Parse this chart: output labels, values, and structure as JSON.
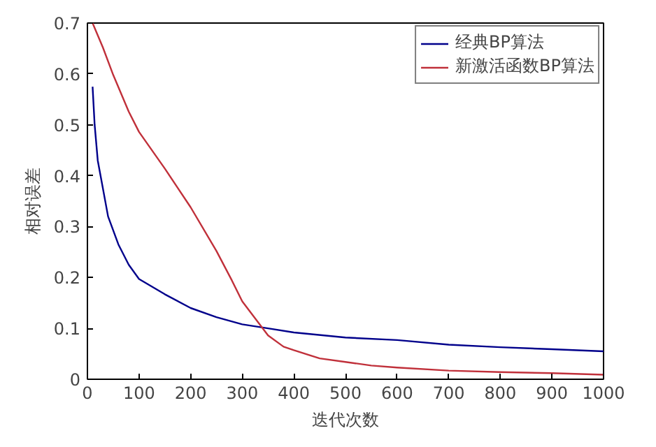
{
  "chart_data": {
    "type": "line",
    "xlabel": "迭代次数",
    "ylabel": "相对误差",
    "xlim": [
      0,
      1000
    ],
    "ylim": [
      0,
      0.7
    ],
    "xticks": [
      0,
      100,
      200,
      300,
      400,
      500,
      600,
      700,
      800,
      900,
      1000
    ],
    "yticks": [
      0,
      0.1,
      0.2,
      0.3,
      0.4,
      0.5,
      0.6,
      0.7
    ],
    "grid": false,
    "legend": "top right",
    "line_style": "solid",
    "series": [
      {
        "name": "经典BP算法",
        "color": "#00008b",
        "x": [
          10,
          14,
          20,
          40,
          60,
          80,
          100,
          150,
          200,
          250,
          300,
          350,
          400,
          500,
          600,
          700,
          800,
          900,
          1000
        ],
        "values": [
          0.575,
          0.5,
          0.43,
          0.32,
          0.265,
          0.225,
          0.197,
          0.167,
          0.14,
          0.122,
          0.108,
          0.1,
          0.092,
          0.082,
          0.077,
          0.068,
          0.063,
          0.059,
          0.055
        ]
      },
      {
        "name": "新激活函数BP算法",
        "color": "#c0303a",
        "x": [
          10,
          30,
          50,
          80,
          100,
          150,
          200,
          250,
          280,
          300,
          330,
          350,
          380,
          400,
          450,
          500,
          550,
          600,
          700,
          800,
          900,
          1000
        ],
        "values": [
          0.7,
          0.652,
          0.598,
          0.526,
          0.486,
          0.414,
          0.338,
          0.252,
          0.194,
          0.153,
          0.113,
          0.086,
          0.064,
          0.057,
          0.041,
          0.034,
          0.027,
          0.023,
          0.017,
          0.014,
          0.012,
          0.009
        ]
      }
    ]
  }
}
